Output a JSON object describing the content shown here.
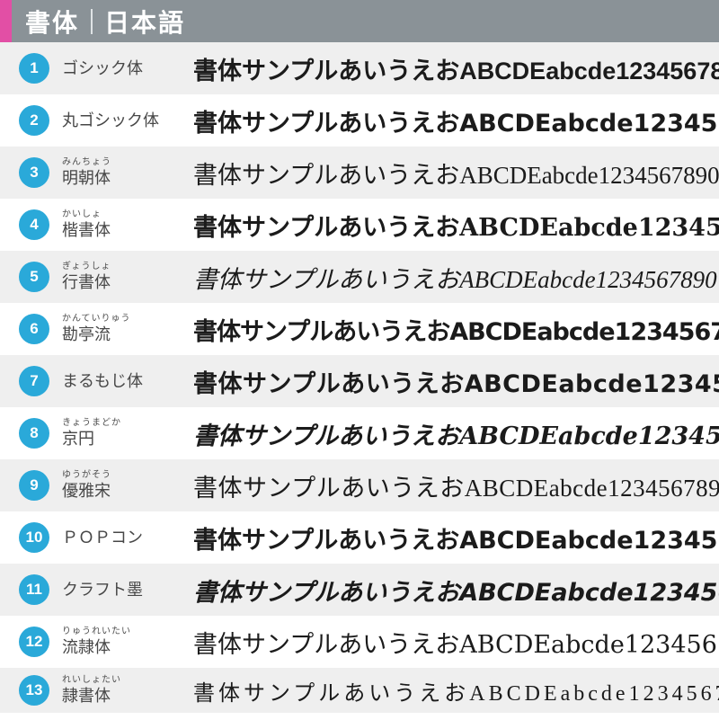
{
  "header": {
    "title_left": "書体",
    "title_right": "日本語"
  },
  "sample_text": "書体サンプルあいうえおABCDEabcde1234567890",
  "colors": {
    "accent_pink": "#e24fa5",
    "header_gray": "#8a9297",
    "circle_blue": "#2aa9d9",
    "row_alt_gray": "#efefef",
    "sample_text_color": "#1b1b1b"
  },
  "rows": [
    {
      "num": "1",
      "furigana": "",
      "name": "ゴシック体"
    },
    {
      "num": "2",
      "furigana": "",
      "name": "丸ゴシック体"
    },
    {
      "num": "3",
      "furigana": "みんちょう",
      "name": "明朝体"
    },
    {
      "num": "4",
      "furigana": "かいしょ",
      "name": "楷書体"
    },
    {
      "num": "5",
      "furigana": "ぎょうしょ",
      "name": "行書体"
    },
    {
      "num": "6",
      "furigana": "かんていりゅう",
      "name": "勘亭流"
    },
    {
      "num": "7",
      "furigana": "",
      "name": "まるもじ体"
    },
    {
      "num": "8",
      "furigana": "きょうまどか",
      "name": "京円"
    },
    {
      "num": "9",
      "furigana": "ゆうがそう",
      "name": "優雅宋"
    },
    {
      "num": "10",
      "furigana": "",
      "name": "ＰＯＰコン"
    },
    {
      "num": "11",
      "furigana": "",
      "name": "クラフト墨"
    },
    {
      "num": "12",
      "furigana": "りゅうれいたい",
      "name": "流隷体"
    },
    {
      "num": "13",
      "furigana": "れいしょたい",
      "name": "隷書体"
    }
  ]
}
